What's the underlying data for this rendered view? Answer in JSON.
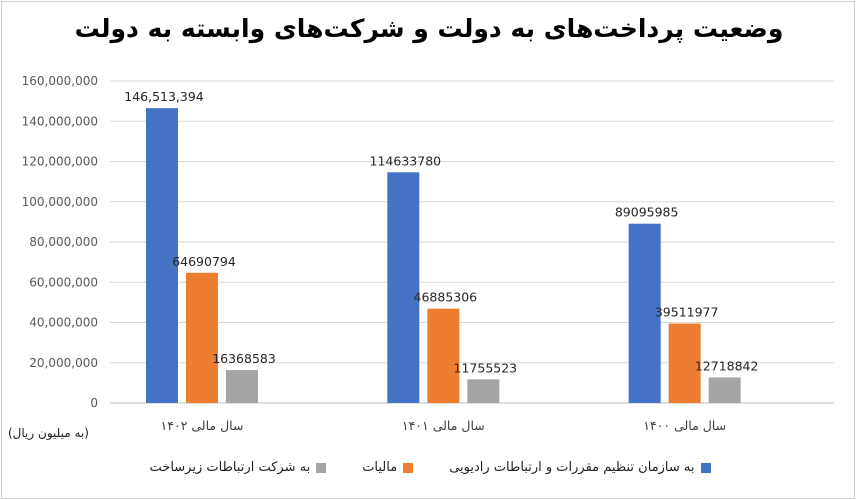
{
  "chart_data": {
    "type": "bar",
    "title": "وضعیت پرداخت‌های به دولت و شرکت‌های وابسته به دولت",
    "ylabel": "(به میلیون ریال)",
    "xlabel": "",
    "categories": [
      "سال مالی ۱۴۰۲",
      "سال مالی ۱۴۰۱",
      "سال مالی ۱۴۰۰"
    ],
    "series": [
      {
        "name": "به سازمان تنظیم مقررات و ارتباطات رادیویی",
        "color": "#4472C4",
        "values": [
          146513394,
          114633780,
          89095985
        ],
        "labels": [
          "146,513,394",
          "114633780",
          "89095985"
        ]
      },
      {
        "name": "مالیات",
        "color": "#ED7D31",
        "values": [
          64690794,
          46885306,
          39511977
        ],
        "labels": [
          "64690794",
          "46885306",
          "39511977"
        ]
      },
      {
        "name": "به شرکت ارتباطات زیرساخت",
        "color": "#A5A5A5",
        "values": [
          16368583,
          11755523,
          12718842
        ],
        "labels": [
          "16368583",
          "11755523",
          "12718842"
        ]
      }
    ],
    "ylim": [
      0,
      160000000
    ],
    "yticks": [
      0,
      20000000,
      40000000,
      60000000,
      80000000,
      100000000,
      120000000,
      140000000,
      160000000
    ],
    "ytick_labels": [
      "0",
      "20,000,000",
      "40,000,000",
      "60,000,000",
      "80,000,000",
      "100,000,000",
      "120,000,000",
      "140,000,000",
      "160,000,000"
    ],
    "grid": true,
    "legend_position": "bottom"
  }
}
